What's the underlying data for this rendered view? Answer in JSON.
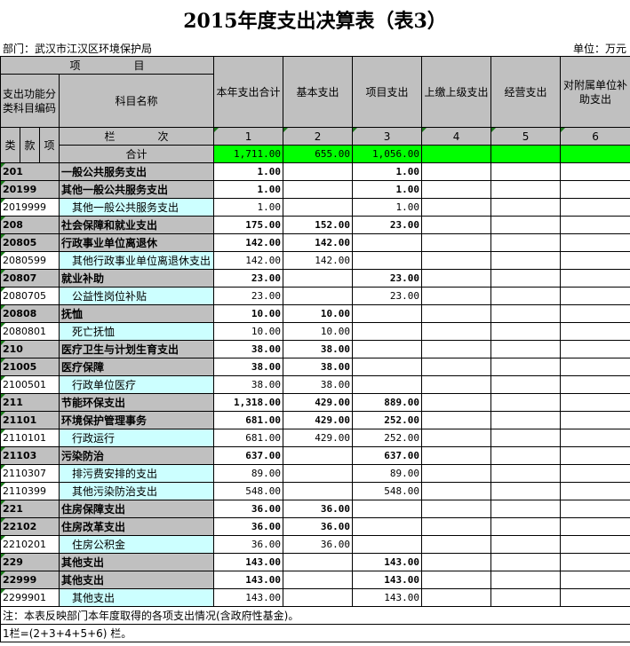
{
  "title": "2015年度支出决算表（表3）",
  "department": "部门：武汉市江汉区环境保护局",
  "unit": "单位：万元",
  "header": {
    "item": "项　　　　　目",
    "code_label": "支出功能分类科目编码",
    "name_label": "科目名称",
    "columns": [
      "本年支出合计",
      "基本支出",
      "项目支出",
      "上缴上级支出",
      "经营支出",
      "对附属单位补助支出"
    ],
    "lei": "类",
    "kuan": "款",
    "xiang": "项",
    "lanci": "栏　　　　次",
    "col_numbers": [
      "1",
      "2",
      "3",
      "4",
      "5",
      "6"
    ],
    "total_label": "合计",
    "totals": [
      "1,711.00",
      "655.00",
      "1,056.00",
      "",
      "",
      ""
    ]
  },
  "rows": [
    {
      "code": "201",
      "name": "一般公共服务支出",
      "level": 1,
      "values": [
        "1.00",
        "",
        "1.00"
      ]
    },
    {
      "code": "20199",
      "name": "其他一般公共服务支出",
      "level": 2,
      "values": [
        "1.00",
        "",
        "1.00"
      ]
    },
    {
      "code": "2019999",
      "name": "其他一般公共服务支出",
      "level": 3,
      "values": [
        "1.00",
        "",
        "1.00"
      ]
    },
    {
      "code": "208",
      "name": "社会保障和就业支出",
      "level": 1,
      "values": [
        "175.00",
        "152.00",
        "23.00"
      ]
    },
    {
      "code": "20805",
      "name": "行政事业单位离退休",
      "level": 2,
      "values": [
        "142.00",
        "142.00",
        ""
      ]
    },
    {
      "code": "2080599",
      "name": "其他行政事业单位离退休支出",
      "level": 3,
      "values": [
        "142.00",
        "142.00",
        ""
      ]
    },
    {
      "code": "20807",
      "name": "就业补助",
      "level": 2,
      "values": [
        "23.00",
        "",
        "23.00"
      ]
    },
    {
      "code": "2080705",
      "name": "公益性岗位补贴",
      "level": 3,
      "values": [
        "23.00",
        "",
        "23.00"
      ]
    },
    {
      "code": "20808",
      "name": "抚恤",
      "level": 2,
      "values": [
        "10.00",
        "10.00",
        ""
      ]
    },
    {
      "code": "2080801",
      "name": "死亡抚恤",
      "level": 3,
      "values": [
        "10.00",
        "10.00",
        ""
      ]
    },
    {
      "code": "210",
      "name": "医疗卫生与计划生育支出",
      "level": 1,
      "values": [
        "38.00",
        "38.00",
        ""
      ]
    },
    {
      "code": "21005",
      "name": "医疗保障",
      "level": 2,
      "values": [
        "38.00",
        "38.00",
        ""
      ]
    },
    {
      "code": "2100501",
      "name": "行政单位医疗",
      "level": 3,
      "values": [
        "38.00",
        "38.00",
        ""
      ]
    },
    {
      "code": "211",
      "name": "节能环保支出",
      "level": 1,
      "values": [
        "1,318.00",
        "429.00",
        "889.00"
      ]
    },
    {
      "code": "21101",
      "name": "环境保护管理事务",
      "level": 2,
      "values": [
        "681.00",
        "429.00",
        "252.00"
      ]
    },
    {
      "code": "2110101",
      "name": "行政运行",
      "level": 3,
      "values": [
        "681.00",
        "429.00",
        "252.00"
      ]
    },
    {
      "code": "21103",
      "name": "污染防治",
      "level": 2,
      "values": [
        "637.00",
        "",
        "637.00"
      ]
    },
    {
      "code": "2110307",
      "name": "排污费安排的支出",
      "level": 3,
      "values": [
        "89.00",
        "",
        "89.00"
      ]
    },
    {
      "code": "2110399",
      "name": "其他污染防治支出",
      "level": 3,
      "values": [
        "548.00",
        "",
        "548.00"
      ]
    },
    {
      "code": "221",
      "name": "住房保障支出",
      "level": 1,
      "values": [
        "36.00",
        "36.00",
        ""
      ]
    },
    {
      "code": "22102",
      "name": "住房改革支出",
      "level": 2,
      "values": [
        "36.00",
        "36.00",
        ""
      ]
    },
    {
      "code": "2210201",
      "name": "住房公积金",
      "level": 3,
      "values": [
        "36.00",
        "36.00",
        ""
      ]
    },
    {
      "code": "229",
      "name": "其他支出",
      "level": 1,
      "values": [
        "143.00",
        "",
        "143.00"
      ]
    },
    {
      "code": "22999",
      "name": "其他支出",
      "level": 2,
      "values": [
        "143.00",
        "",
        "143.00"
      ]
    },
    {
      "code": "2299901",
      "name": "其他支出",
      "level": 3,
      "values": [
        "143.00",
        "",
        "143.00"
      ]
    }
  ],
  "notes": [
    "注：本表反映部门本年度取得的各项支出情况(含政府性基金)。",
    "1栏=(2+3+4+5+6) 栏。"
  ],
  "colors": {
    "header_gray": "#c0c0c0",
    "total_green": "#00ff00",
    "sub_name_cyan": "#ccffff"
  }
}
